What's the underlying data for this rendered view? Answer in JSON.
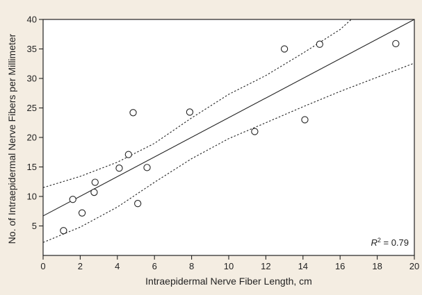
{
  "chart_data": {
    "type": "scatter",
    "title": "",
    "xlabel": "Intraepidermal Nerve Fiber Length, cm",
    "ylabel": "No. of Intraepidermal Nerve Fibers per Millimeter",
    "xlim": [
      0,
      20
    ],
    "ylim": [
      0,
      40
    ],
    "xticks": [
      0,
      2,
      4,
      6,
      8,
      10,
      12,
      14,
      16,
      18,
      20
    ],
    "yticks": [
      5,
      10,
      15,
      20,
      25,
      30,
      35,
      40
    ],
    "grid": false,
    "points": [
      {
        "x": 1.1,
        "y": 4.2
      },
      {
        "x": 1.6,
        "y": 9.5
      },
      {
        "x": 2.1,
        "y": 7.2
      },
      {
        "x": 2.75,
        "y": 10.7
      },
      {
        "x": 2.8,
        "y": 12.4
      },
      {
        "x": 4.1,
        "y": 14.8
      },
      {
        "x": 4.6,
        "y": 17.1
      },
      {
        "x": 4.85,
        "y": 24.2
      },
      {
        "x": 5.1,
        "y": 8.8
      },
      {
        "x": 5.6,
        "y": 14.9
      },
      {
        "x": 7.9,
        "y": 24.3
      },
      {
        "x": 11.4,
        "y": 21.0
      },
      {
        "x": 13.0,
        "y": 35.0
      },
      {
        "x": 14.1,
        "y": 23.0
      },
      {
        "x": 14.9,
        "y": 35.8
      },
      {
        "x": 19.0,
        "y": 35.9
      }
    ],
    "regression_line": {
      "x": [
        0,
        20
      ],
      "y": [
        6.7,
        40.0
      ]
    },
    "confidence_band": {
      "upper": {
        "x": [
          0,
          2,
          4,
          6,
          8,
          10,
          12,
          14,
          16,
          16.6
        ],
        "y": [
          11.5,
          13.4,
          15.8,
          19.0,
          23.3,
          27.3,
          30.5,
          34.3,
          38.3,
          40.0
        ]
      },
      "lower": {
        "x": [
          0,
          2,
          4,
          6,
          8,
          10,
          12,
          14,
          16,
          18,
          20
        ],
        "y": [
          2.2,
          4.8,
          8.2,
          12.4,
          16.4,
          19.8,
          22.5,
          25.2,
          27.8,
          30.2,
          32.6
        ]
      }
    },
    "annotation": {
      "symbol": "R",
      "superscript": "2",
      "text": " = 0.79"
    }
  }
}
